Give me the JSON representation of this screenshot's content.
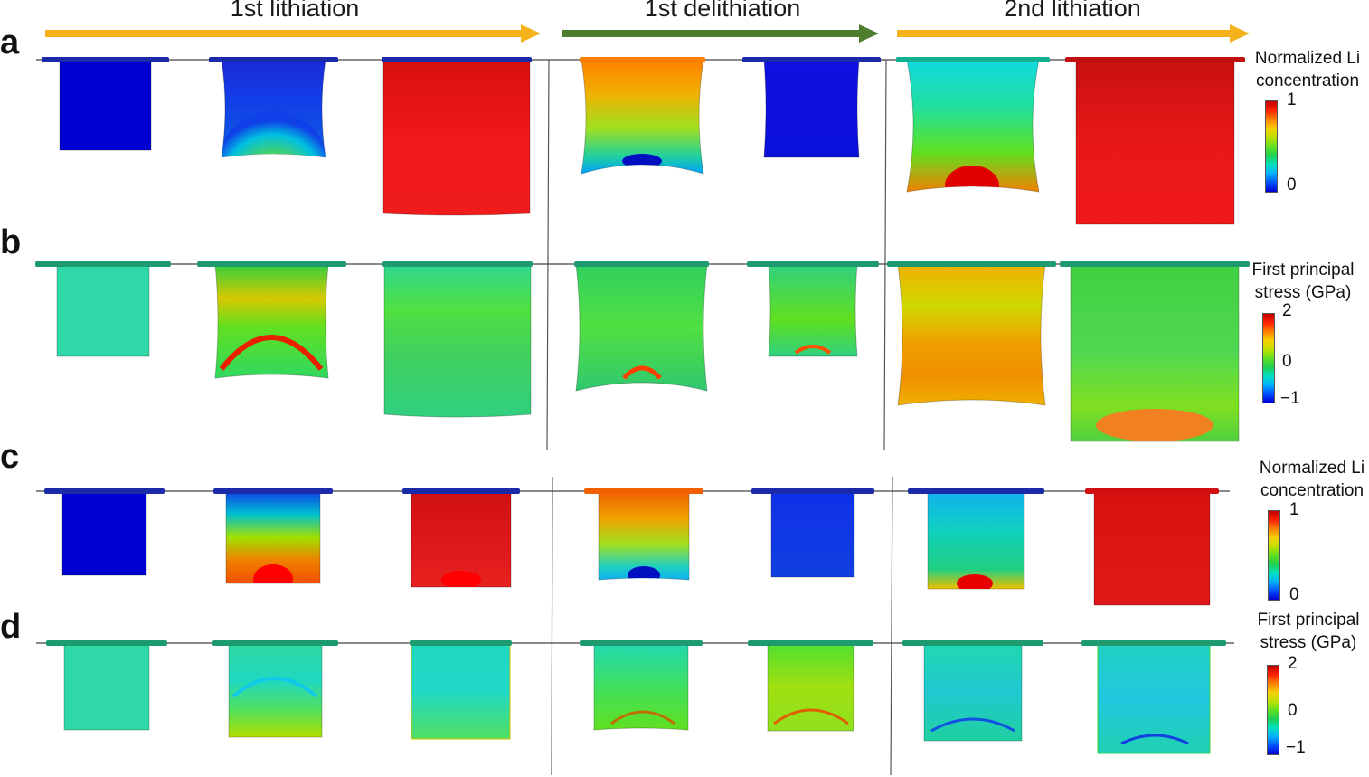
{
  "phases": [
    {
      "label": "1st lithiation",
      "arrow_color": "#F5B21B"
    },
    {
      "label": "1st delithiation",
      "arrow_color": "#4E7D2F"
    },
    {
      "label": "2nd lithiation",
      "arrow_color": "#F5B21B"
    }
  ],
  "panels": [
    {
      "label": "a",
      "legend": {
        "line1": "Normalized Li",
        "line2": "concentration",
        "ticks": [
          "1",
          "0"
        ]
      }
    },
    {
      "label": "b",
      "legend": {
        "line1": "First principal",
        "line2": "stress (GPa)",
        "ticks": [
          "2",
          "0",
          "−1"
        ]
      }
    },
    {
      "label": "c",
      "legend": {
        "line1": "Normalized Li",
        "line2": "concentration",
        "ticks": [
          "1",
          "0"
        ]
      }
    },
    {
      "label": "d",
      "legend": {
        "line1": "First principal",
        "line2": "stress (GPa)",
        "ticks": [
          "2",
          "0",
          "−1"
        ]
      }
    }
  ],
  "colormap": [
    "#0000d0",
    "#0050ff",
    "#00b0ff",
    "#00e0c0",
    "#20d050",
    "#60e020",
    "#c0e000",
    "#f5d000",
    "#ff8000",
    "#ff2000",
    "#c00000"
  ]
}
